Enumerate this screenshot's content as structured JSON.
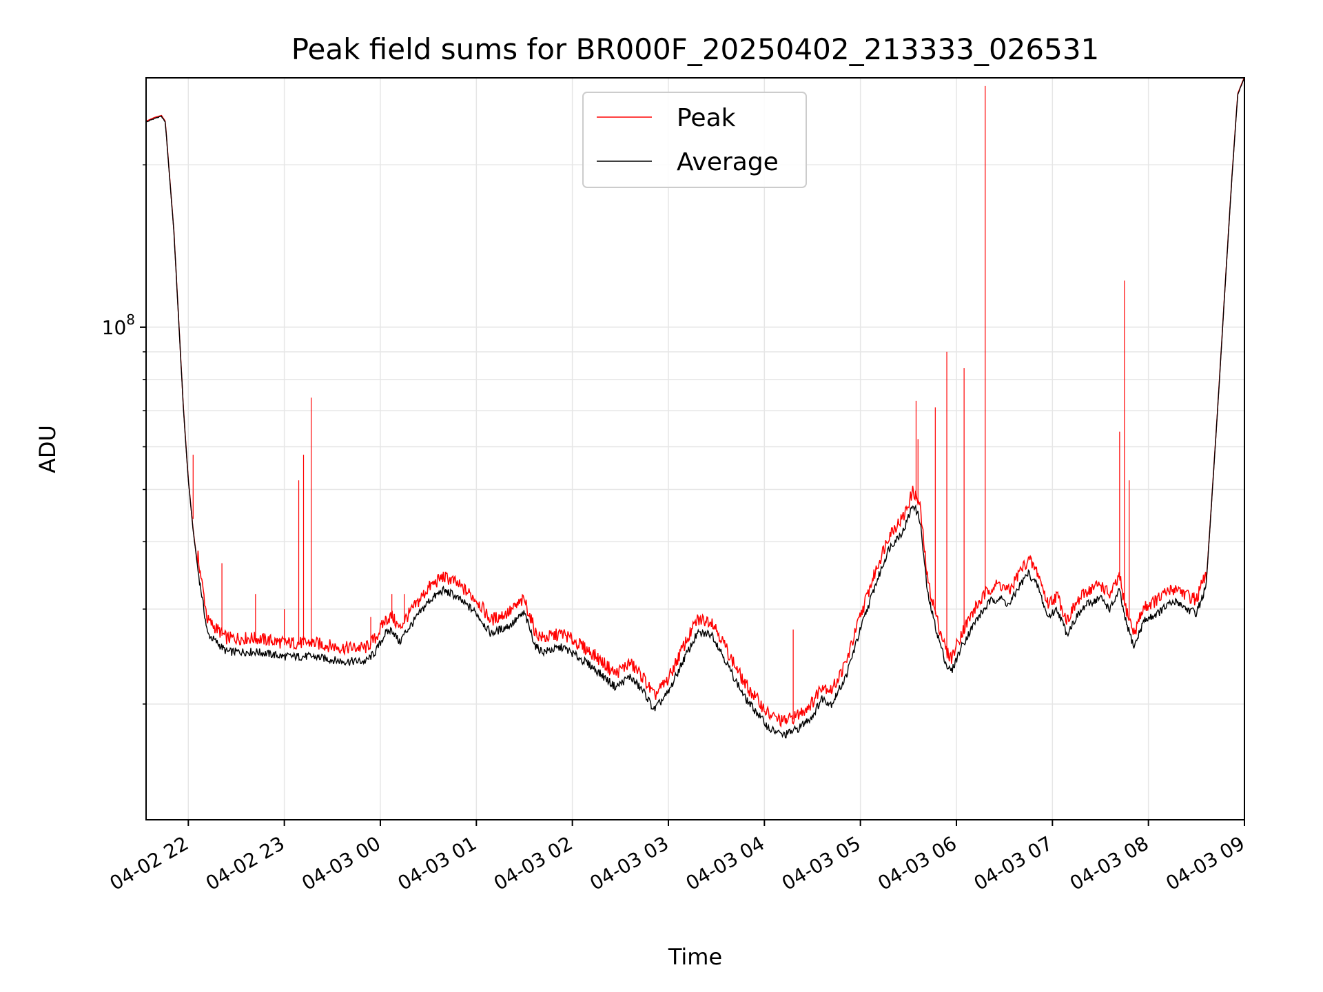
{
  "chart_data": {
    "type": "line",
    "title": "Peak field sums for BR000F_20250402_213333_026531",
    "xlabel": "Time",
    "ylabel": "ADU",
    "yscale": "log",
    "ylim": [
      12200000,
      290000000
    ],
    "xlim_hours_since_2025_04_02_00_00": [
      21.56,
      33.0
    ],
    "grid": true,
    "legend_position": "top-center",
    "x_tick_labels": [
      "04-02 22",
      "04-02 23",
      "04-03 00",
      "04-03 01",
      "04-03 02",
      "04-03 03",
      "04-03 04",
      "04-03 05",
      "04-03 06",
      "04-03 07",
      "04-03 08",
      "04-03 09"
    ],
    "x_tick_values_hours": [
      22,
      23,
      24,
      25,
      26,
      27,
      28,
      29,
      30,
      31,
      32,
      33
    ],
    "y_major_tick": {
      "value": 100000000,
      "label_base": "10",
      "label_exp": "8"
    },
    "y_minor_tick_values": [
      20000000,
      30000000,
      40000000,
      50000000,
      60000000,
      70000000,
      80000000,
      90000000,
      200000000
    ],
    "x_hours": [
      21.56,
      21.65,
      21.72,
      21.76,
      21.85,
      21.95,
      22.0,
      22.05,
      22.1,
      22.2,
      22.4,
      22.7,
      23.0,
      23.3,
      23.6,
      23.85,
      23.95,
      24.05,
      24.12,
      24.2,
      24.25,
      24.35,
      24.5,
      24.65,
      24.75,
      24.9,
      25.0,
      25.15,
      25.35,
      25.5,
      25.62,
      25.7,
      25.9,
      26.05,
      26.2,
      26.45,
      26.6,
      26.75,
      26.85,
      27.0,
      27.15,
      27.3,
      27.45,
      27.55,
      27.65,
      27.8,
      27.95,
      28.05,
      28.2,
      28.35,
      28.5,
      28.6,
      28.7,
      28.85,
      29.0,
      29.15,
      29.3,
      29.45,
      29.55,
      29.62,
      29.7,
      29.8,
      29.9,
      29.95,
      30.05,
      30.2,
      30.35,
      30.45,
      30.55,
      30.65,
      30.75,
      30.85,
      30.95,
      31.05,
      31.15,
      31.25,
      31.35,
      31.5,
      31.6,
      31.7,
      31.75,
      31.85,
      31.95,
      32.1,
      32.2,
      32.3,
      32.4,
      32.5,
      32.6,
      32.65,
      32.72,
      32.8,
      32.87,
      32.93,
      33.0
    ],
    "series": [
      {
        "name": "Peak",
        "color": "#ff0000",
        "spikes": [
          {
            "x": 22.05,
            "y": 58000000
          },
          {
            "x": 22.35,
            "y": 36500000
          },
          {
            "x": 22.7,
            "y": 32000000
          },
          {
            "x": 23.0,
            "y": 30000000
          },
          {
            "x": 23.15,
            "y": 52000000
          },
          {
            "x": 23.2,
            "y": 58000000
          },
          {
            "x": 23.28,
            "y": 74000000
          },
          {
            "x": 23.9,
            "y": 29000000
          },
          {
            "x": 24.12,
            "y": 32000000
          },
          {
            "x": 24.25,
            "y": 32000000
          },
          {
            "x": 28.3,
            "y": 27500000
          },
          {
            "x": 29.58,
            "y": 73000000
          },
          {
            "x": 29.6,
            "y": 62000000
          },
          {
            "x": 29.78,
            "y": 71000000
          },
          {
            "x": 29.9,
            "y": 90000000
          },
          {
            "x": 30.08,
            "y": 84000000
          },
          {
            "x": 30.3,
            "y": 280000000
          },
          {
            "x": 31.7,
            "y": 64000000
          },
          {
            "x": 31.75,
            "y": 122000000
          },
          {
            "x": 31.8,
            "y": 52000000
          }
        ]
      },
      {
        "name": "Average",
        "color": "#000000",
        "values": [
          240000000,
          244000000,
          246000000,
          240000000,
          150000000,
          70000000,
          52000000,
          42000000,
          35500000,
          27000000,
          25000000,
          25000000,
          24500000,
          24500000,
          24000000,
          24000000,
          25000000,
          27000000,
          27500000,
          26000000,
          27000000,
          28500000,
          31000000,
          32500000,
          32000000,
          30500000,
          29500000,
          27000000,
          28000000,
          29500000,
          25500000,
          25000000,
          25500000,
          24500000,
          23500000,
          21500000,
          22500000,
          21000000,
          19500000,
          21000000,
          24000000,
          27000000,
          27000000,
          25000000,
          23000000,
          20500000,
          19000000,
          18000000,
          17500000,
          18000000,
          19000000,
          20500000,
          20000000,
          22500000,
          27500000,
          33000000,
          39000000,
          42000000,
          47000000,
          44000000,
          32000000,
          27000000,
          23500000,
          23000000,
          25500000,
          28500000,
          31000000,
          31500000,
          30500000,
          33000000,
          35000000,
          33000000,
          29000000,
          30000000,
          27000000,
          29000000,
          30500000,
          31500000,
          30000000,
          32500000,
          29000000,
          25500000,
          28500000,
          29500000,
          30500000,
          31000000,
          30000000,
          29500000,
          33000000,
          45000000,
          70000000,
          120000000,
          190000000,
          270000000,
          290000000
        ]
      }
    ]
  }
}
